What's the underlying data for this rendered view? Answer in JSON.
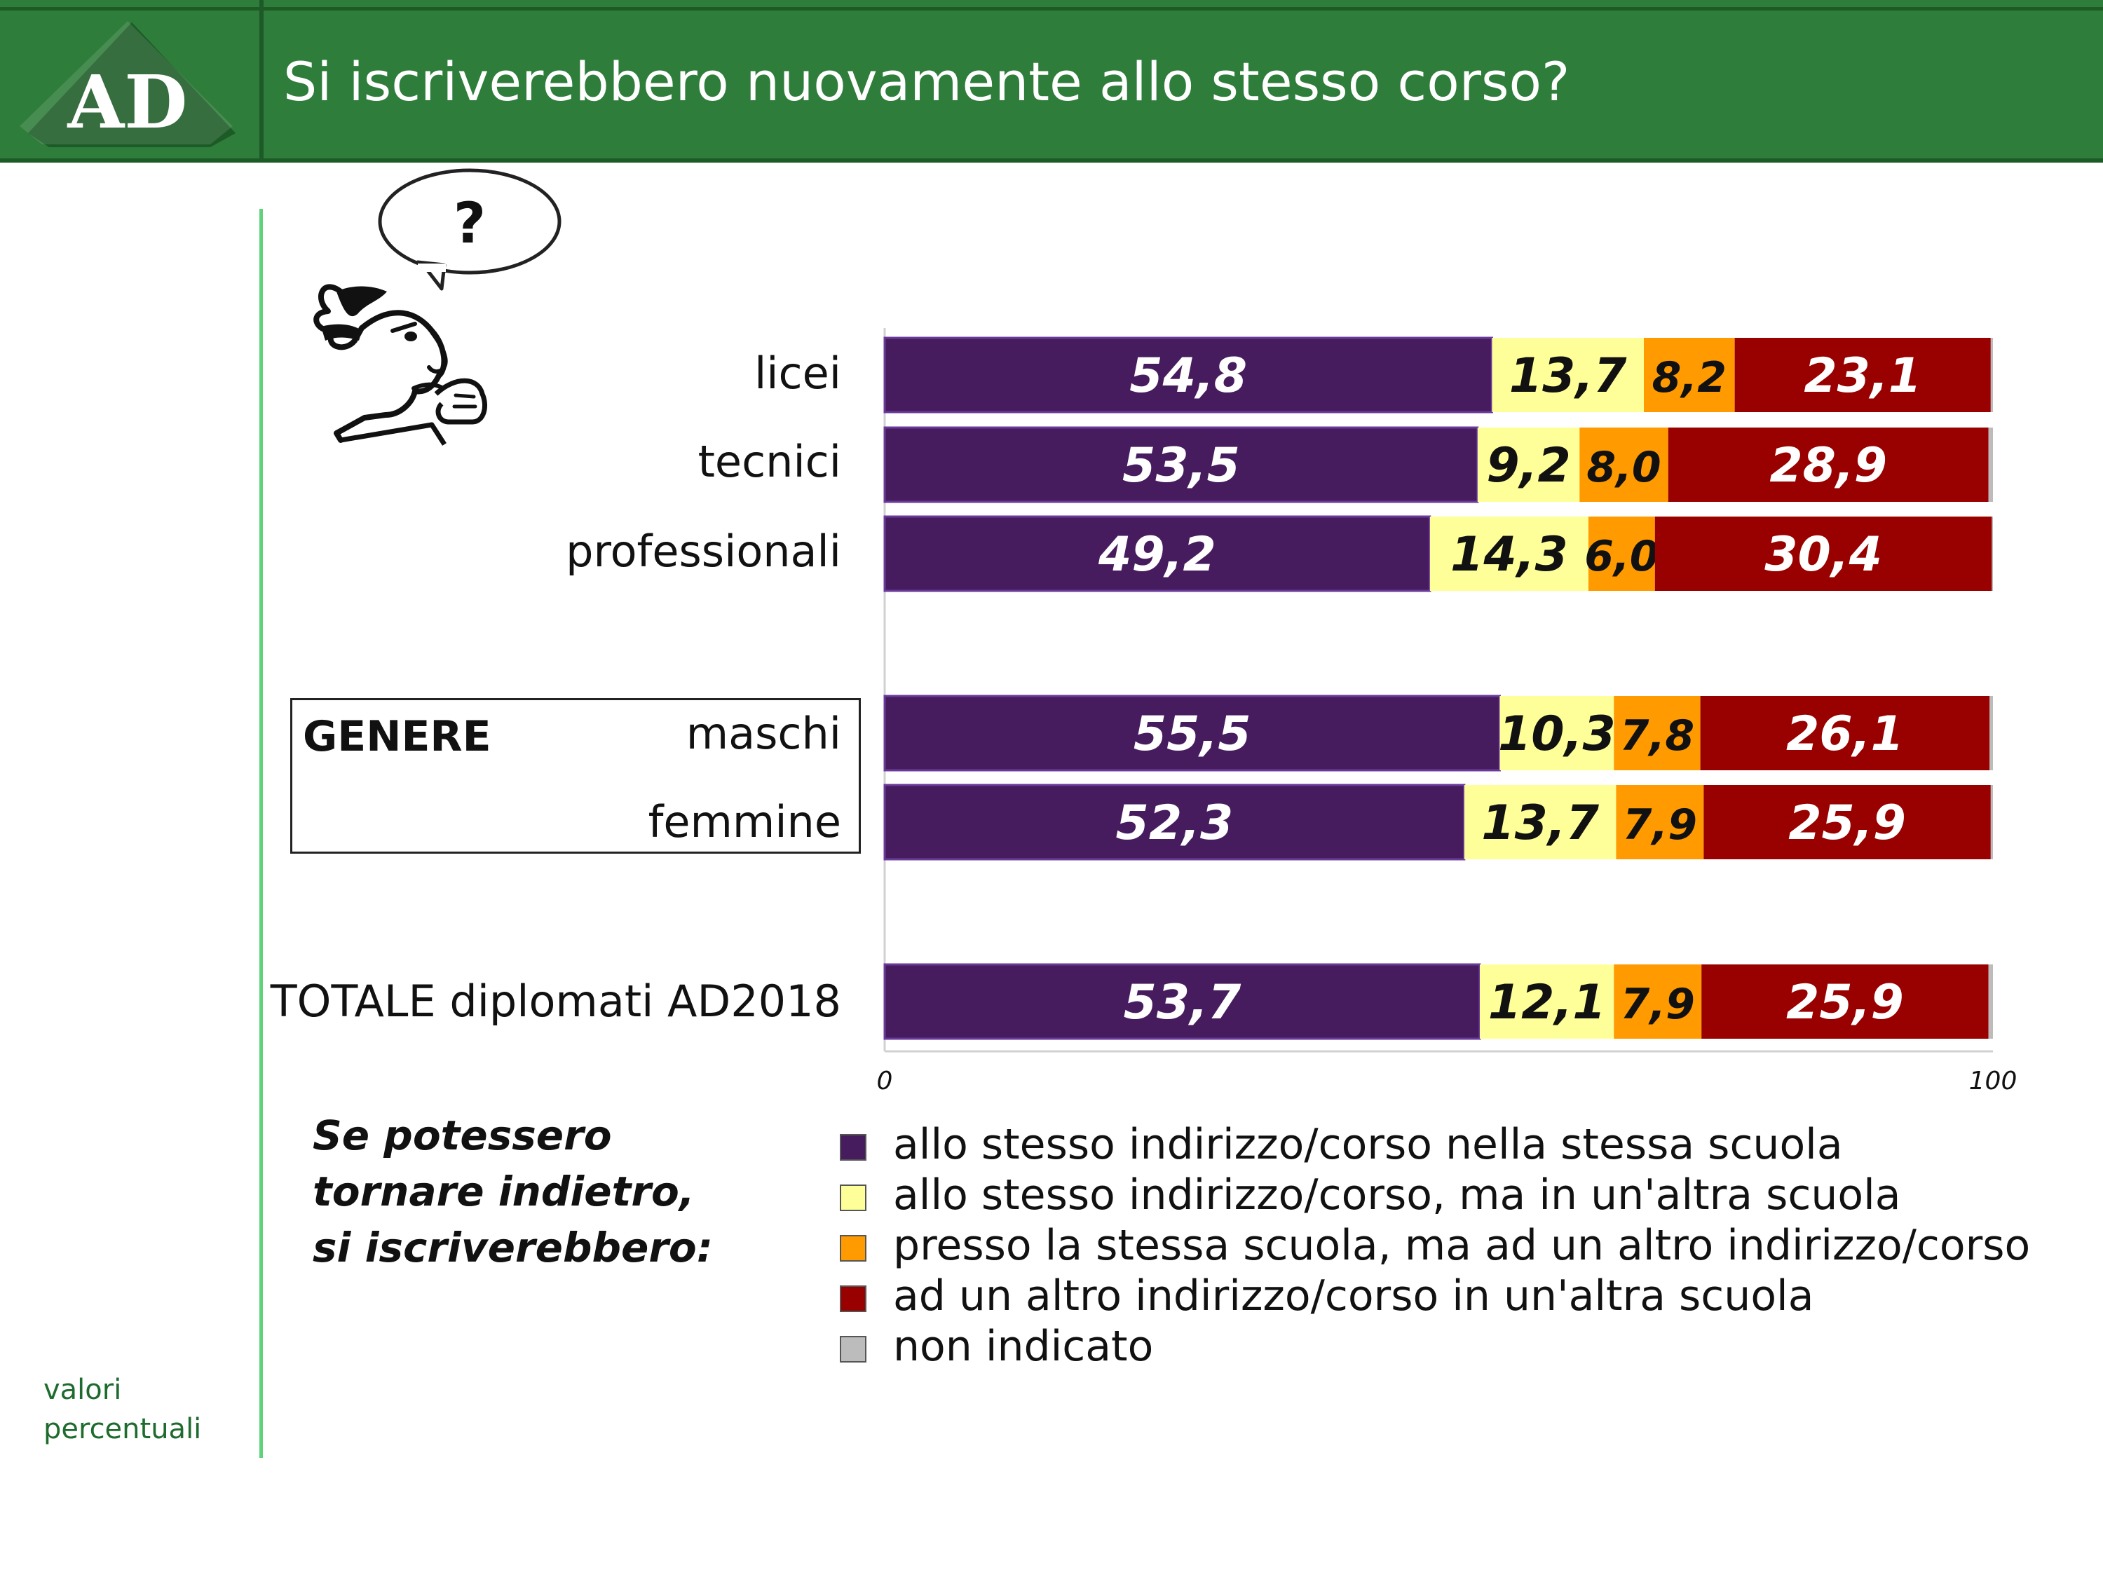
{
  "header": {
    "logo_text": "AD",
    "title": "Si iscriverebbero nuovamente allo stesso corso?"
  },
  "speech_bubble": {
    "text": "?"
  },
  "note": {
    "line1": "valori",
    "line2": "percentuali"
  },
  "genere": {
    "label": "GENERE"
  },
  "question": {
    "line1": "Se potessero",
    "line2": "tornare indietro,",
    "line3": "si iscriverebbero:"
  },
  "colors": {
    "purple": "#471c5e",
    "yellow": "#ffff99",
    "orange": "#ff9a00",
    "red": "#990000",
    "grey": "#bcbcbc",
    "header_green": "#2e7d3a",
    "accent_green": "#5fd37a"
  },
  "chart_data": {
    "type": "bar",
    "orientation": "horizontal",
    "stacked": true,
    "categories": [
      "licei",
      "tecnici",
      "professionali",
      "maschi",
      "femmine",
      "TOTALE diplomati AD2018"
    ],
    "xlim": [
      0,
      100
    ],
    "x_ticks": [
      "0",
      "100"
    ],
    "series": [
      {
        "name": "allo stesso indirizzo/corso nella stessa scuola",
        "color": "#471c5e",
        "values": [
          54.8,
          53.5,
          49.2,
          55.5,
          52.3,
          53.7
        ],
        "labels": [
          "54,8",
          "53,5",
          "49,2",
          "55,5",
          "52,3",
          "53,7"
        ]
      },
      {
        "name": "allo stesso indirizzo/corso, ma in un'altra scuola",
        "color": "#ffff99",
        "values": [
          13.7,
          9.2,
          14.3,
          10.3,
          13.7,
          12.1
        ],
        "labels": [
          "13,7",
          "9,2",
          "14,3",
          "10,3",
          "13,7",
          "12,1"
        ]
      },
      {
        "name": "presso la stessa scuola, ma ad un altro indirizzo/corso",
        "color": "#ff9a00",
        "values": [
          8.2,
          8.0,
          6.0,
          7.8,
          7.9,
          7.9
        ],
        "labels": [
          "8,2",
          "8,0",
          "6,0",
          "7,8",
          "7,9",
          "7,9"
        ]
      },
      {
        "name": "ad un altro indirizzo/corso in un'altra scuola",
        "color": "#990000",
        "values": [
          23.1,
          28.9,
          30.4,
          26.1,
          25.9,
          25.9
        ],
        "labels": [
          "23,1",
          "28,9",
          "30,4",
          "26,1",
          "25,9",
          "25,9"
        ]
      },
      {
        "name": "non indicato",
        "color": "#bcbcbc",
        "values": [
          0.2,
          0.4,
          0.1,
          0.3,
          0.2,
          0.4
        ],
        "labels": [
          "",
          "",
          "",
          "",
          "",
          ""
        ]
      }
    ],
    "legend_position": "bottom"
  }
}
